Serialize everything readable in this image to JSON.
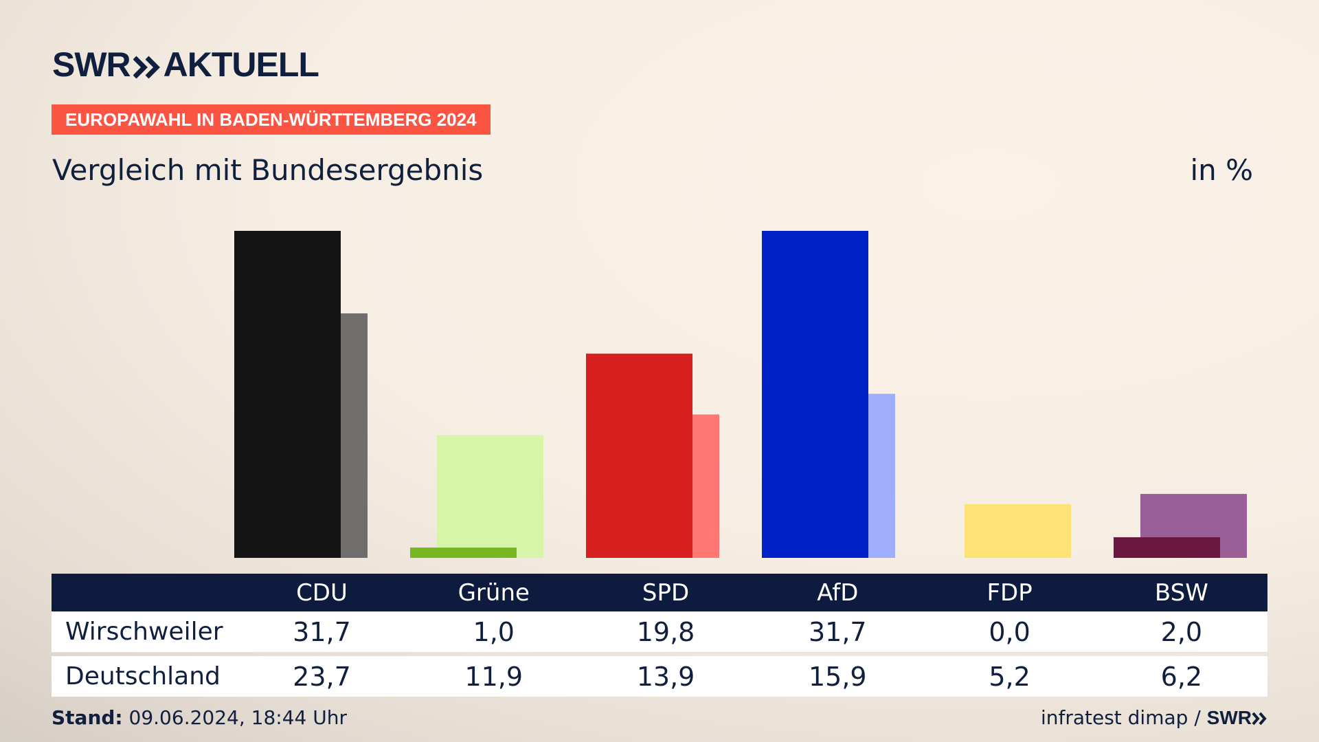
{
  "brand": {
    "swr": "SWR",
    "aktuell": "AKTUELL"
  },
  "banner": "EUROPAWAHL IN BADEN-WÜRTTEMBERG 2024",
  "subtitle": "Vergleich mit Bundesergebnis",
  "unit": "in %",
  "table": {
    "rows": [
      {
        "label": "Wirschweiler",
        "values": [
          "31,7",
          "1,0",
          "19,8",
          "31,7",
          "0,0",
          "2,0"
        ]
      },
      {
        "label": "Deutschland",
        "values": [
          "23,7",
          "11,9",
          "13,9",
          "15,9",
          "5,2",
          "6,2"
        ]
      }
    ]
  },
  "footer": {
    "stand_label": "Stand:",
    "stand_value": "09.06.2024, 18:44 Uhr",
    "source": "infratest dimap",
    "separator": "/",
    "source_brand": "SWR"
  },
  "chart_data": {
    "type": "bar",
    "title": "Vergleich mit Bundesergebnis",
    "unit": "in %",
    "categories": [
      "CDU",
      "Grüne",
      "SPD",
      "AfD",
      "FDP",
      "BSW"
    ],
    "series": [
      {
        "name": "Wirschweiler",
        "values": [
          31.7,
          1.0,
          19.8,
          31.7,
          0.0,
          2.0
        ],
        "colors": [
          "#141414",
          "#77b81e",
          "#d71f1f",
          "#0022c8",
          "#f5d64a",
          "#6a1840"
        ]
      },
      {
        "name": "Deutschland",
        "values": [
          23.7,
          11.9,
          13.9,
          15.9,
          5.2,
          6.2
        ],
        "colors": [
          "#6f6e6c",
          "#d7f5a9",
          "#ff7672",
          "#9eaefc",
          "#fde276",
          "#9b5f98"
        ]
      }
    ],
    "ylim": [
      0,
      31.7
    ],
    "grid": false,
    "legend": "table below chart"
  }
}
